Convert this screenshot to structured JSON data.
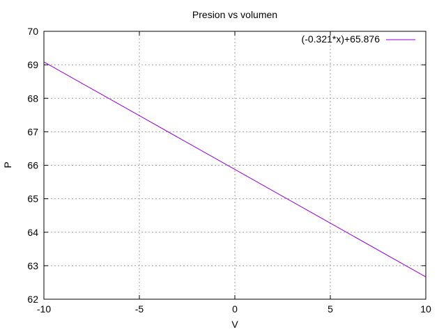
{
  "chart_data": {
    "type": "line",
    "title": "Presion vs volumen",
    "xlabel": "V",
    "ylabel": "P",
    "xlim": [
      -10,
      10
    ],
    "ylim": [
      62,
      70
    ],
    "xticks": [
      -10,
      -5,
      0,
      5,
      10
    ],
    "yticks": [
      62,
      63,
      64,
      65,
      66,
      67,
      68,
      69,
      70
    ],
    "grid": true,
    "legend_position": "top-right",
    "series": [
      {
        "name": "(-0.321*x)+65.876",
        "color": "#9400d3",
        "x": [
          -10,
          -5,
          0,
          5,
          10
        ],
        "y": [
          69.086,
          67.481,
          65.876,
          64.271,
          62.666
        ]
      }
    ]
  }
}
